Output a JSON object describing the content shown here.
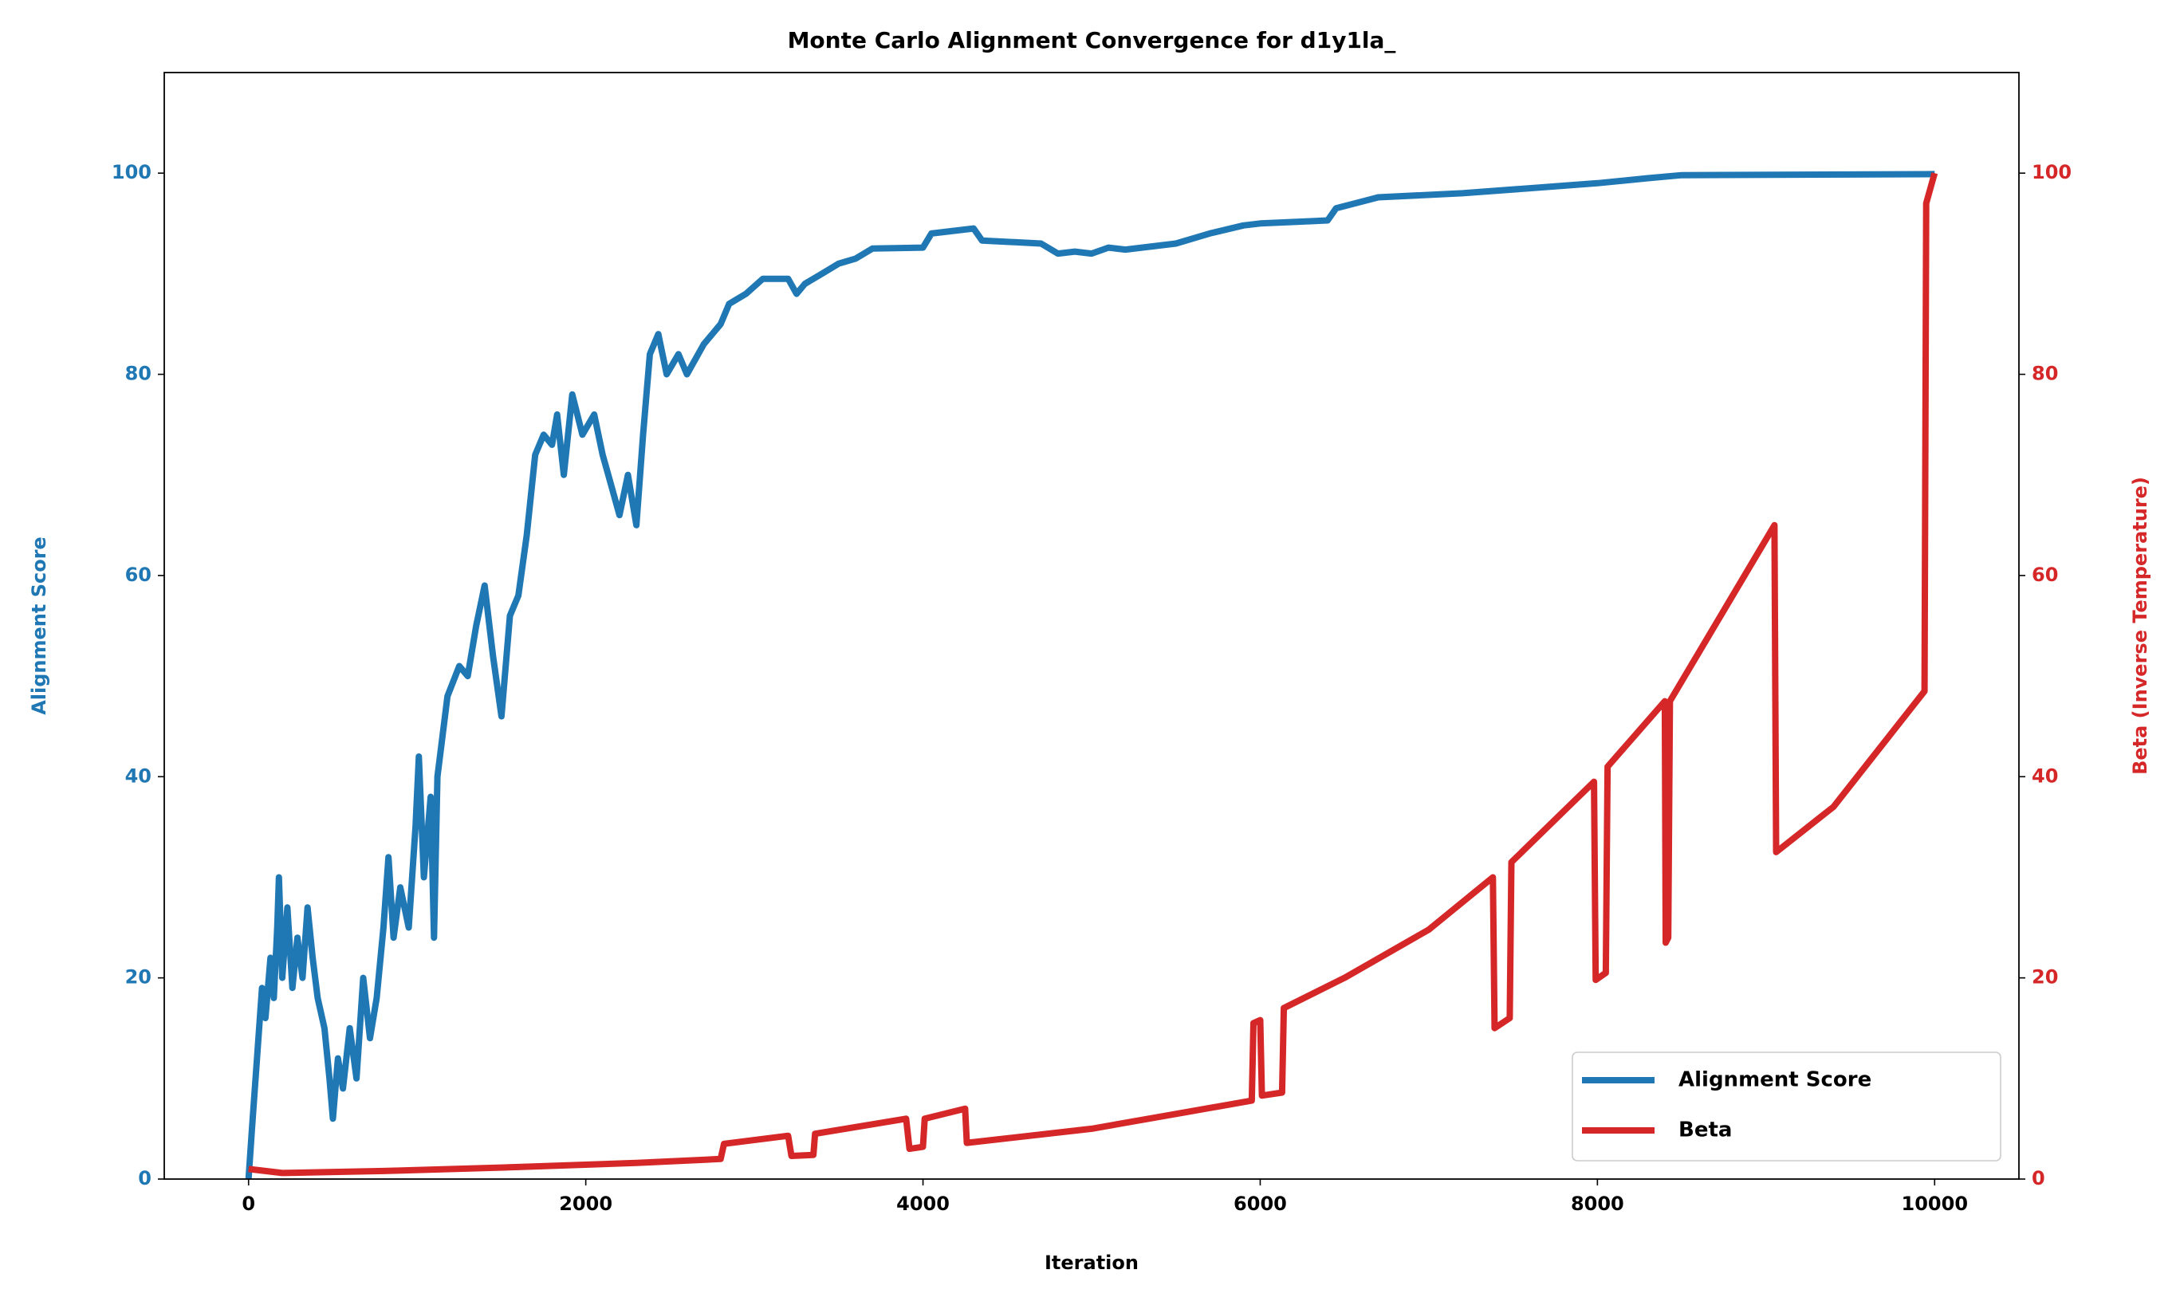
{
  "chart_data": {
    "type": "line",
    "title": "Monte Carlo Alignment Convergence for d1y1la_",
    "x_label": "Iteration",
    "y_label": "Alignment Score",
    "y2_label": "Beta (Inverse Temperature)",
    "xlim": [
      -500,
      10500
    ],
    "xticks": [
      0,
      2000,
      4000,
      6000,
      8000,
      10000
    ],
    "ylim": [
      0,
      110
    ],
    "yticks": [
      0,
      20,
      40,
      60,
      80,
      100
    ],
    "y2lim": [
      0,
      110
    ],
    "y2ticks": [
      0,
      20,
      40,
      60,
      80,
      100
    ],
    "legend": "lower right",
    "series": [
      {
        "name": "Alignment Score",
        "color": "#1f77b4",
        "x": [
          0,
          20,
          50,
          80,
          100,
          130,
          150,
          170,
          180,
          200,
          230,
          260,
          290,
          320,
          350,
          380,
          410,
          450,
          480,
          500,
          530,
          560,
          600,
          640,
          680,
          720,
          760,
          800,
          830,
          860,
          900,
          950,
          990,
          1010,
          1040,
          1080,
          1100,
          1120,
          1180,
          1250,
          1300,
          1350,
          1400,
          1450,
          1500,
          1550,
          1600,
          1650,
          1700,
          1750,
          1800,
          1830,
          1870,
          1920,
          1980,
          2050,
          2100,
          2150,
          2200,
          2250,
          2300,
          2340,
          2380,
          2430,
          2480,
          2550,
          2600,
          2700,
          2800,
          2850,
          2950,
          3050,
          3200,
          3250,
          3300,
          3400,
          3500,
          3600,
          3700,
          4000,
          4050,
          4300,
          4350,
          4700,
          4800,
          4900,
          5000,
          5100,
          5200,
          5500,
          5700,
          5900,
          6000,
          6400,
          6450,
          6700,
          7200,
          7600,
          8000,
          8300,
          8500,
          10000
        ],
        "values": [
          0,
          5,
          12,
          19,
          16,
          22,
          18,
          25,
          30,
          20,
          27,
          19,
          24,
          20,
          27,
          22,
          18,
          15,
          10,
          6,
          12,
          9,
          15,
          10,
          20,
          14,
          18,
          25,
          32,
          24,
          29,
          25,
          35,
          42,
          30,
          38,
          24,
          40,
          48,
          51,
          50,
          55,
          59,
          52,
          46,
          56,
          58,
          64,
          72,
          74,
          73,
          76,
          70,
          78,
          74,
          76,
          72,
          69,
          66,
          70,
          65,
          74,
          82,
          84,
          80,
          82,
          80,
          83,
          85,
          87,
          88,
          89.5,
          89.5,
          88,
          89,
          90,
          91,
          91.5,
          92.5,
          92.6,
          94,
          94.5,
          93.3,
          93,
          92,
          92.2,
          92,
          92.6,
          92.4,
          93,
          94,
          94.8,
          95,
          95.3,
          96.5,
          97.6,
          98,
          98.5,
          99,
          99.5,
          99.8,
          99.9
        ]
      },
      {
        "name": "Beta",
        "color": "#d62728",
        "axis": "y2",
        "x": [
          0,
          200,
          800,
          1600,
          2300,
          2800,
          2820,
          3200,
          3220,
          3350,
          3360,
          3650,
          3900,
          3920,
          4000,
          4010,
          4250,
          4260,
          5000,
          5950,
          5960,
          6000,
          6010,
          6130,
          6140,
          6500,
          7000,
          7380,
          7390,
          7480,
          7490,
          7980,
          7990,
          8050,
          8060,
          8400,
          8405,
          8420,
          8430,
          9050,
          9060,
          9400,
          9940,
          9950,
          10000
        ],
        "values": [
          1,
          0.6,
          0.8,
          1.2,
          1.6,
          2,
          3.5,
          4.3,
          2.3,
          2.4,
          4.5,
          5.3,
          6,
          3,
          3.2,
          6,
          7,
          3.6,
          5,
          7.8,
          15.5,
          15.8,
          8.3,
          8.6,
          17,
          20,
          24.8,
          30,
          15,
          16,
          31.5,
          39.5,
          19.8,
          20.5,
          41,
          47.5,
          23.5,
          24,
          47.5,
          65,
          32.5,
          37,
          48.5,
          97,
          100
        ]
      }
    ]
  }
}
